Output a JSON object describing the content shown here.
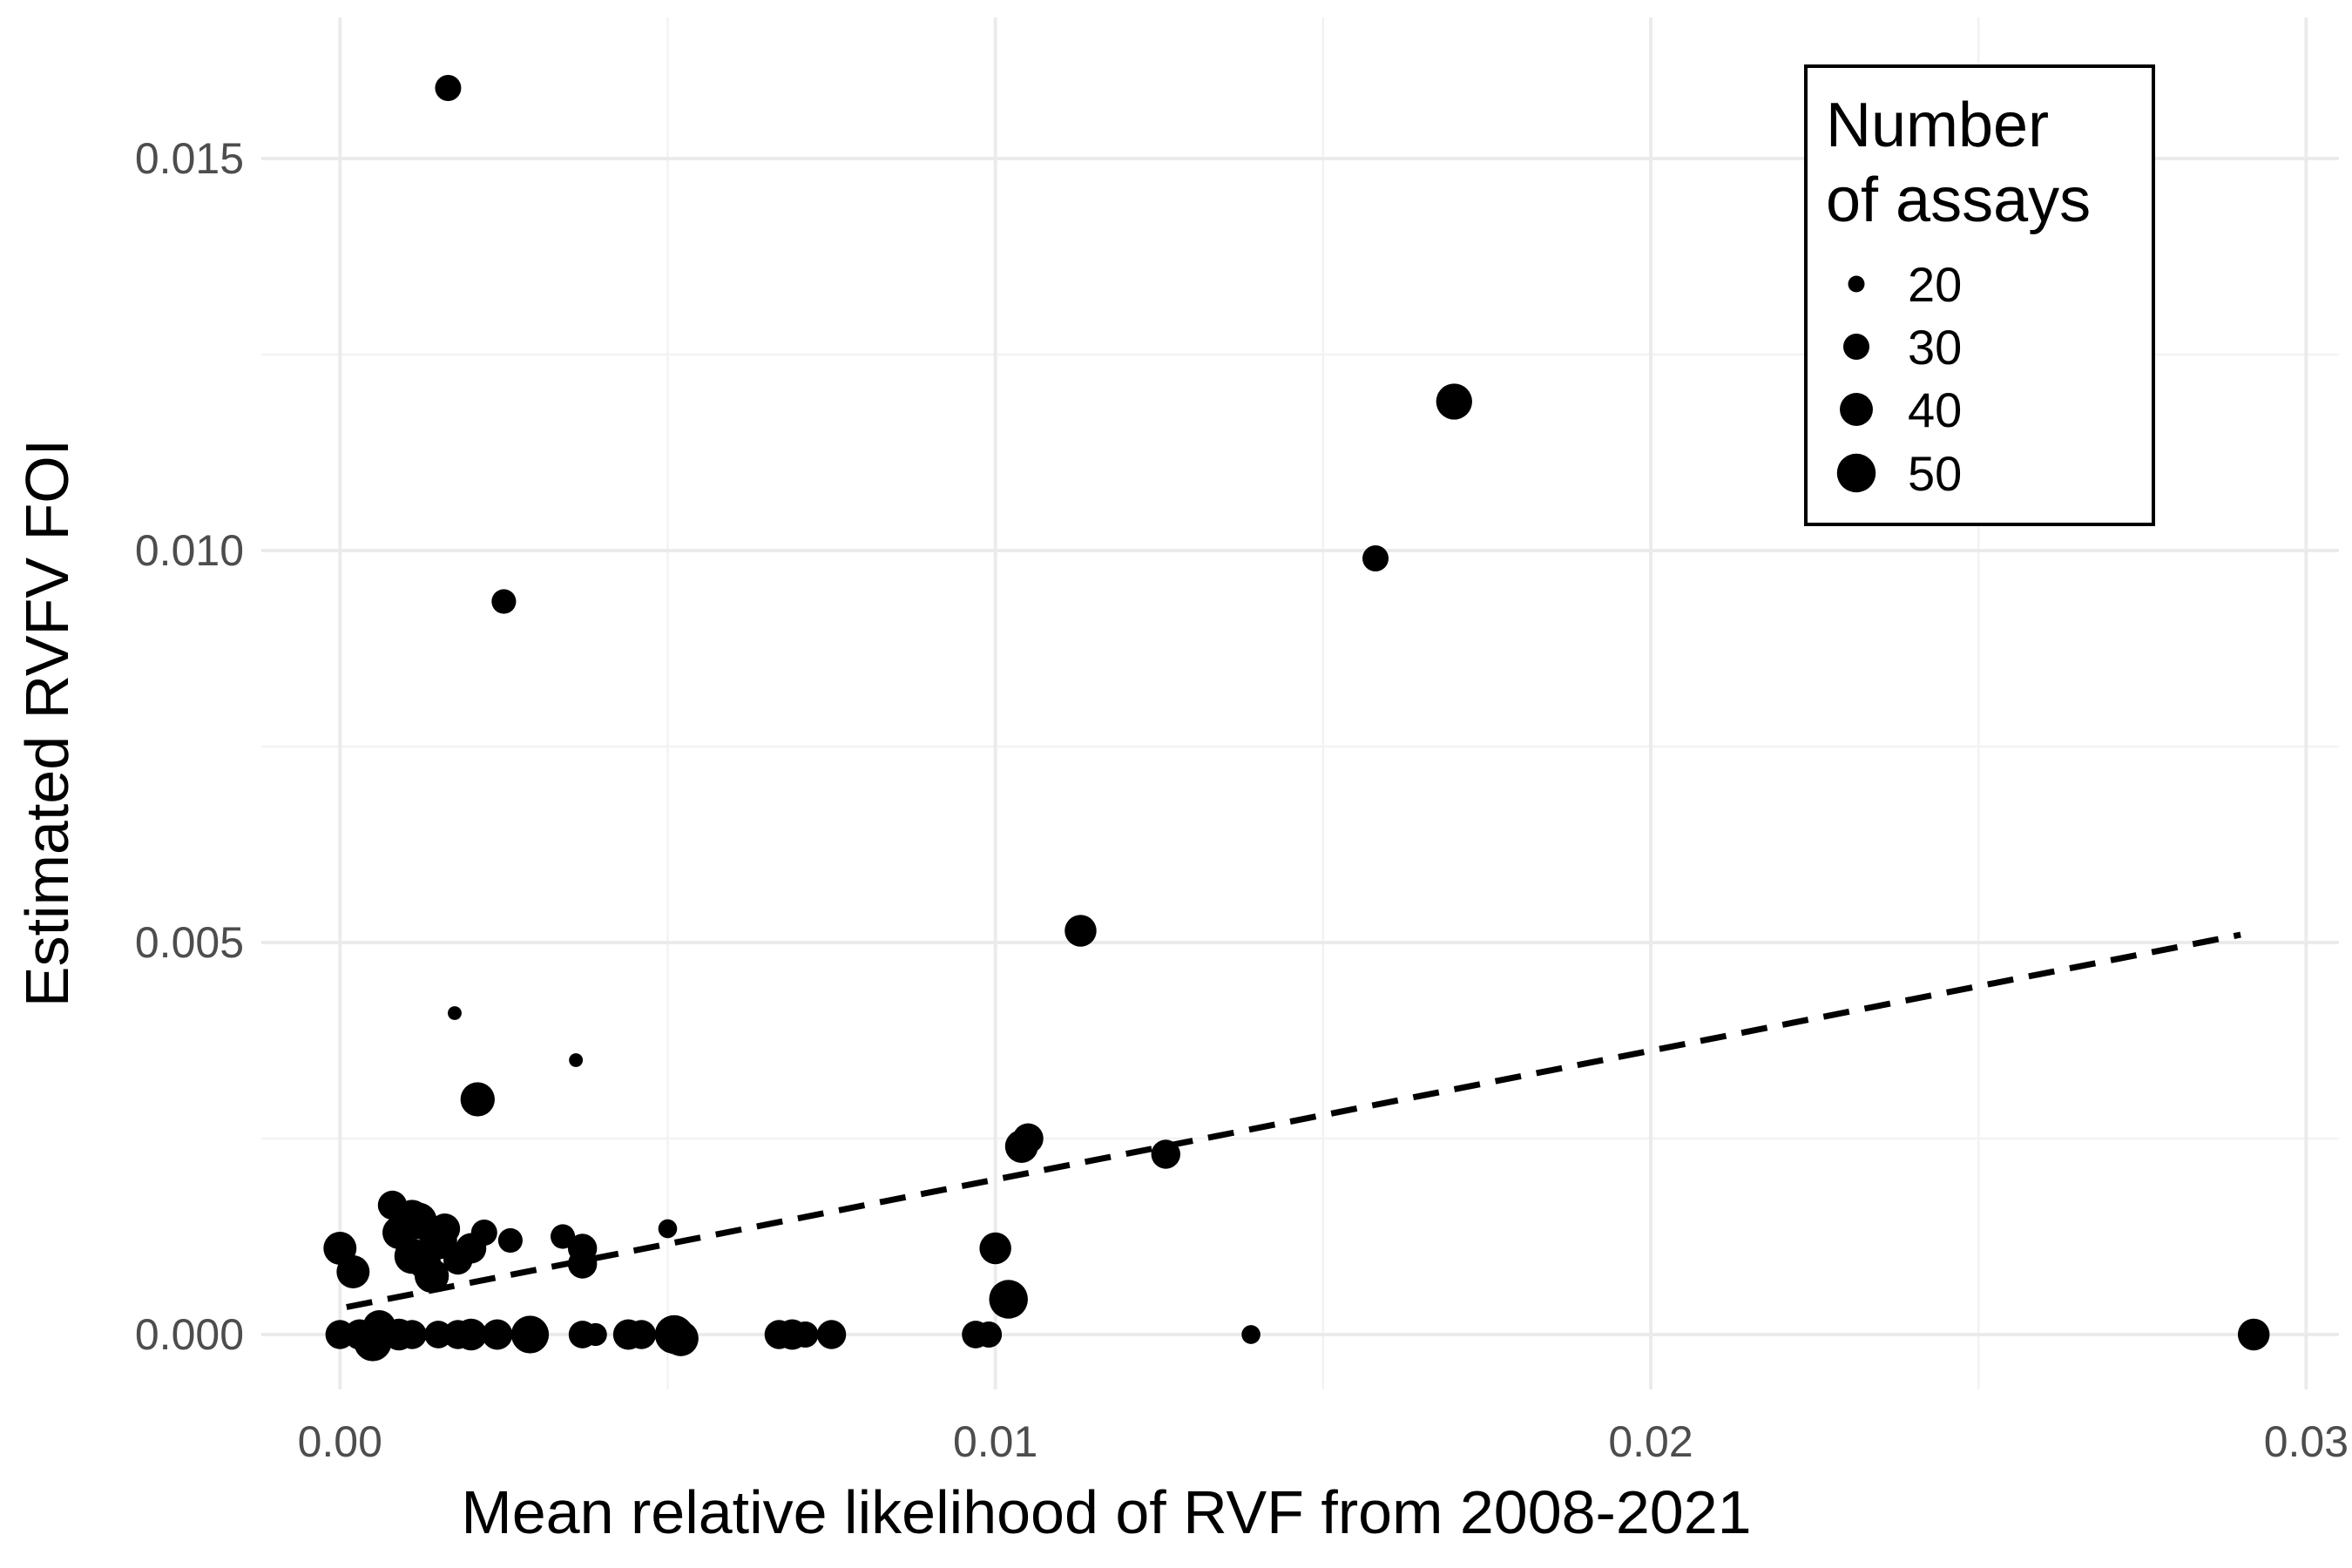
{
  "chart_data": {
    "type": "scatter",
    "xlabel": "Mean relative likelihood of RVF from 2008-2021",
    "ylabel": "Estimated RVFV FOI",
    "xlim": [
      -0.0012,
      0.0305
    ],
    "ylim": [
      -0.0007,
      0.0168
    ],
    "x_ticks": [
      0.0,
      0.01,
      0.02,
      0.03
    ],
    "x_tick_labels": [
      "0.00",
      "0.01",
      "0.02",
      "0.03"
    ],
    "y_ticks": [
      0.0,
      0.005,
      0.01,
      0.015
    ],
    "y_tick_labels": [
      "0.000",
      "0.005",
      "0.010",
      "0.015"
    ],
    "grid": true,
    "legend": {
      "title_lines": [
        "Number",
        "of assays"
      ],
      "position": "top-right",
      "entries": [
        {
          "label": "20",
          "size": 20
        },
        {
          "label": "30",
          "size": 30
        },
        {
          "label": "40",
          "size": 40
        },
        {
          "label": "50",
          "size": 50
        }
      ]
    },
    "size_range": [
      16,
      56
    ],
    "trend_line": {
      "style": "dashed",
      "x": [
        0.0001,
        0.029
      ],
      "y": [
        0.00035,
        0.0051
      ]
    },
    "points": [
      {
        "x": 0.00165,
        "y": 0.0159,
        "size": 30
      },
      {
        "x": 0.0025,
        "y": 0.00935,
        "size": 28
      },
      {
        "x": 0.0158,
        "y": 0.0099,
        "size": 30
      },
      {
        "x": 0.017,
        "y": 0.0119,
        "size": 45
      },
      {
        "x": 0.0113,
        "y": 0.00515,
        "size": 38
      },
      {
        "x": 0.00175,
        "y": 0.0041,
        "size": 18
      },
      {
        "x": 0.0036,
        "y": 0.0035,
        "size": 18
      },
      {
        "x": 0.0021,
        "y": 0.003,
        "size": 42
      },
      {
        "x": 0.0105,
        "y": 0.0025,
        "size": 36
      },
      {
        "x": 0.0104,
        "y": 0.0024,
        "size": 40
      },
      {
        "x": 0.0126,
        "y": 0.0023,
        "size": 34
      },
      {
        "x": 0.0102,
        "y": 0.00045,
        "size": 50
      },
      {
        "x": 0.01,
        "y": 0.0011,
        "size": 38
      },
      {
        "x": 0.005,
        "y": 0.00135,
        "size": 22
      },
      {
        "x": 0.0008,
        "y": 0.00165,
        "size": 34
      },
      {
        "x": 0.0011,
        "y": 0.0015,
        "size": 42
      },
      {
        "x": 0.0012,
        "y": 0.00145,
        "size": 46
      },
      {
        "x": 0.0009,
        "y": 0.0013,
        "size": 40
      },
      {
        "x": 0.0015,
        "y": 0.0012,
        "size": 48
      },
      {
        "x": 0.0011,
        "y": 0.001,
        "size": 44
      },
      {
        "x": 0.0013,
        "y": 0.0009,
        "size": 38
      },
      {
        "x": 0.0014,
        "y": 0.00075,
        "size": 42
      },
      {
        "x": 0.0016,
        "y": 0.00135,
        "size": 36
      },
      {
        "x": 0.0018,
        "y": 0.00095,
        "size": 34
      },
      {
        "x": 0.002,
        "y": 0.0011,
        "size": 36
      },
      {
        "x": 0.0022,
        "y": 0.0013,
        "size": 30
      },
      {
        "x": 0.0026,
        "y": 0.0012,
        "size": 28
      },
      {
        "x": 0.0034,
        "y": 0.00125,
        "size": 28
      },
      {
        "x": 0.0037,
        "y": 0.0011,
        "size": 34
      },
      {
        "x": 0.0037,
        "y": 0.0009,
        "size": 34
      },
      {
        "x": 0.0,
        "y": 0.0011,
        "size": 40
      },
      {
        "x": 0.0002,
        "y": 0.0008,
        "size": 40
      },
      {
        "x": 0.0,
        "y": 0.0,
        "size": 34
      },
      {
        "x": 0.0003,
        "y": 0.0,
        "size": 36
      },
      {
        "x": 0.0005,
        "y": -0.0001,
        "size": 48
      },
      {
        "x": 0.0006,
        "y": 0.0001,
        "size": 40
      },
      {
        "x": 0.0009,
        "y": 0.0,
        "size": 38
      },
      {
        "x": 0.0011,
        "y": 0.0,
        "size": 34
      },
      {
        "x": 0.0015,
        "y": 0.0,
        "size": 32
      },
      {
        "x": 0.0018,
        "y": 0.0,
        "size": 34
      },
      {
        "x": 0.002,
        "y": 0.0,
        "size": 38
      },
      {
        "x": 0.0024,
        "y": 0.0,
        "size": 36
      },
      {
        "x": 0.0029,
        "y": 0.0,
        "size": 48
      },
      {
        "x": 0.0037,
        "y": 0.0,
        "size": 32
      },
      {
        "x": 0.0039,
        "y": 0.0,
        "size": 26
      },
      {
        "x": 0.0044,
        "y": 0.0,
        "size": 36
      },
      {
        "x": 0.0046,
        "y": 0.0,
        "size": 34
      },
      {
        "x": 0.0051,
        "y": 0.0,
        "size": 50
      },
      {
        "x": 0.0052,
        "y": -5e-05,
        "size": 44
      },
      {
        "x": 0.0067,
        "y": 0.0,
        "size": 34
      },
      {
        "x": 0.0069,
        "y": 0.0,
        "size": 36
      },
      {
        "x": 0.0071,
        "y": 0.0,
        "size": 30
      },
      {
        "x": 0.0075,
        "y": 0.0,
        "size": 34
      },
      {
        "x": 0.0097,
        "y": 0.0,
        "size": 32
      },
      {
        "x": 0.0099,
        "y": 0.0,
        "size": 30
      },
      {
        "x": 0.0139,
        "y": 0.0,
        "size": 22
      },
      {
        "x": 0.0292,
        "y": 0.0,
        "size": 38
      }
    ]
  }
}
